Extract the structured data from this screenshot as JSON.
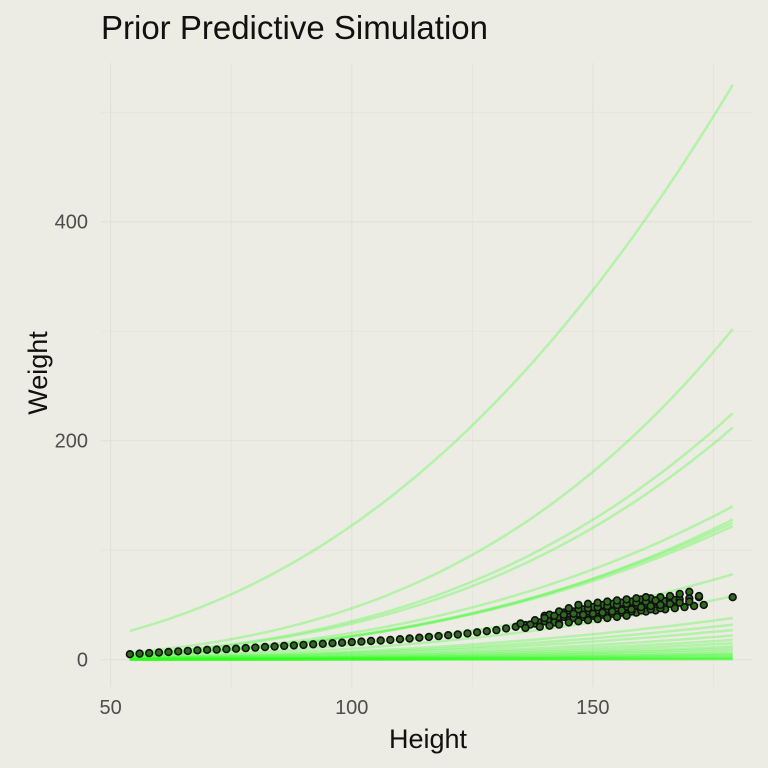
{
  "chart_data": {
    "type": "line",
    "title": "Prior Predictive Simulation",
    "xlabel": "Height",
    "ylabel": "Weight",
    "xlim": [
      48,
      183
    ],
    "ylim": [
      -25,
      545
    ],
    "x_ticks": [
      50,
      100,
      150
    ],
    "y_ticks": [
      0,
      200,
      400
    ],
    "grid": true,
    "legend": "none",
    "colors": {
      "background": "#ececE4",
      "grid": "#e2e2da",
      "prior_line": "#33ff22",
      "data_point": "#111111",
      "data_fill": "#2e6b1f"
    },
    "series": [
      {
        "kind": "prior_curves",
        "x_range": [
          54,
          179
        ],
        "curve_model": "weight = w_end * (height / 179)^exponent",
        "curves": [
          {
            "w_end": 525,
            "exponent": 2.5
          },
          {
            "w_end": 302,
            "exponent": 3.2
          },
          {
            "w_end": 225,
            "exponent": 3.2
          },
          {
            "w_end": 212,
            "exponent": 3.2
          },
          {
            "w_end": 140,
            "exponent": 3.0
          },
          {
            "w_end": 128,
            "exponent": 3.1
          },
          {
            "w_end": 125,
            "exponent": 3.0
          },
          {
            "w_end": 122,
            "exponent": 3.0
          },
          {
            "w_end": 78,
            "exponent": 3.0
          },
          {
            "w_end": 58,
            "exponent": 3.0
          },
          {
            "w_end": 38,
            "exponent": 2.8
          },
          {
            "w_end": 32,
            "exponent": 2.8
          },
          {
            "w_end": 27,
            "exponent": 2.8
          },
          {
            "w_end": 22,
            "exponent": 2.9
          },
          {
            "w_end": 18,
            "exponent": 2.9
          },
          {
            "w_end": 15,
            "exponent": 3.0
          },
          {
            "w_end": 12,
            "exponent": 3.0
          },
          {
            "w_end": 10,
            "exponent": 3.0
          },
          {
            "w_end": 8,
            "exponent": 3.0
          },
          {
            "w_end": 6,
            "exponent": 3.0
          },
          {
            "w_end": 5,
            "exponent": 3.0
          },
          {
            "w_end": 4,
            "exponent": 3.0
          },
          {
            "w_end": 3,
            "exponent": 3.0
          },
          {
            "w_end": 2,
            "exponent": 3.0
          },
          {
            "w_end": 1.5,
            "exponent": 3.0
          },
          {
            "w_end": 1,
            "exponent": 3.0
          },
          {
            "w_end": 0.6,
            "exponent": 3.0
          },
          {
            "w_end": 0.3,
            "exponent": 3.0
          }
        ]
      },
      {
        "kind": "observed_points",
        "points": [
          [
            54,
            5
          ],
          [
            56,
            5.5
          ],
          [
            58,
            6
          ],
          [
            60,
            6.5
          ],
          [
            62,
            7
          ],
          [
            64,
            7.5
          ],
          [
            66,
            8
          ],
          [
            68,
            8.5
          ],
          [
            70,
            9
          ],
          [
            72,
            9.2
          ],
          [
            74,
            9.6
          ],
          [
            76,
            10
          ],
          [
            78,
            10.5
          ],
          [
            80,
            11
          ],
          [
            82,
            11.5
          ],
          [
            84,
            12
          ],
          [
            86,
            12.5
          ],
          [
            88,
            13
          ],
          [
            90,
            13.5
          ],
          [
            92,
            14
          ],
          [
            94,
            14.5
          ],
          [
            96,
            15
          ],
          [
            98,
            15.5
          ],
          [
            100,
            16
          ],
          [
            102,
            16.5
          ],
          [
            104,
            17
          ],
          [
            106,
            17.5
          ],
          [
            108,
            18
          ],
          [
            110,
            18.7
          ],
          [
            112,
            19.3
          ],
          [
            114,
            20
          ],
          [
            116,
            20.8
          ],
          [
            118,
            21.5
          ],
          [
            120,
            22.3
          ],
          [
            122,
            23
          ],
          [
            124,
            24
          ],
          [
            126,
            25
          ],
          [
            128,
            26
          ],
          [
            130,
            27
          ],
          [
            132,
            28.5
          ],
          [
            134,
            30
          ],
          [
            136,
            31.5
          ],
          [
            138,
            33
          ],
          [
            139,
            34
          ],
          [
            140,
            35
          ],
          [
            141,
            36
          ],
          [
            142,
            37
          ],
          [
            143,
            38
          ],
          [
            144,
            39
          ],
          [
            145,
            40
          ],
          [
            146,
            40.5
          ],
          [
            147,
            41
          ],
          [
            148,
            42
          ],
          [
            149,
            43
          ],
          [
            150,
            43.5
          ],
          [
            151,
            44
          ],
          [
            152,
            45
          ],
          [
            153,
            46
          ],
          [
            154,
            46.5
          ],
          [
            155,
            47
          ],
          [
            156,
            48
          ],
          [
            157,
            48.5
          ],
          [
            158,
            49
          ],
          [
            159,
            50
          ],
          [
            160,
            50.5
          ],
          [
            161,
            51
          ],
          [
            162,
            52
          ],
          [
            163,
            52.5
          ],
          [
            164,
            53
          ],
          [
            165,
            53.5
          ],
          [
            166,
            54
          ],
          [
            167,
            54.5
          ],
          [
            168,
            55
          ],
          [
            170,
            56
          ],
          [
            172,
            57
          ],
          [
            179,
            57
          ],
          [
            140,
            40
          ],
          [
            141,
            41
          ],
          [
            142,
            34
          ],
          [
            143,
            33
          ],
          [
            144,
            43
          ],
          [
            145,
            36
          ],
          [
            146,
            44
          ],
          [
            147,
            36
          ],
          [
            148,
            46
          ],
          [
            149,
            38
          ],
          [
            150,
            48
          ],
          [
            151,
            39
          ],
          [
            152,
            50
          ],
          [
            153,
            40
          ],
          [
            154,
            51
          ],
          [
            155,
            41
          ],
          [
            156,
            52
          ],
          [
            157,
            42
          ],
          [
            158,
            53
          ],
          [
            159,
            43
          ],
          [
            160,
            55
          ],
          [
            161,
            44
          ],
          [
            162,
            56
          ],
          [
            163,
            45
          ],
          [
            164,
            57
          ],
          [
            165,
            46
          ],
          [
            166,
            58
          ],
          [
            167,
            47
          ],
          [
            168,
            60
          ],
          [
            169,
            48
          ],
          [
            170,
            62
          ],
          [
            171,
            49
          ],
          [
            172,
            58
          ],
          [
            173,
            50
          ],
          [
            145,
            45
          ],
          [
            147,
            46
          ],
          [
            149,
            47
          ],
          [
            151,
            48
          ],
          [
            153,
            49
          ],
          [
            155,
            50
          ],
          [
            157,
            51
          ],
          [
            159,
            52
          ],
          [
            161,
            53
          ],
          [
            163,
            54
          ],
          [
            146,
            38
          ],
          [
            148,
            39
          ],
          [
            150,
            40
          ],
          [
            152,
            41
          ],
          [
            154,
            42
          ],
          [
            156,
            43
          ],
          [
            158,
            44
          ],
          [
            160,
            45
          ],
          [
            162,
            46
          ],
          [
            164,
            47
          ],
          [
            143,
            44
          ],
          [
            145,
            47
          ],
          [
            147,
            50
          ],
          [
            149,
            51
          ],
          [
            151,
            52
          ],
          [
            153,
            53
          ],
          [
            155,
            54
          ],
          [
            157,
            55
          ],
          [
            159,
            56
          ],
          [
            161,
            57
          ],
          [
            139,
            30
          ],
          [
            141,
            31
          ],
          [
            143,
            32
          ],
          [
            145,
            34
          ],
          [
            147,
            35
          ],
          [
            149,
            36
          ],
          [
            151,
            37
          ],
          [
            153,
            38
          ],
          [
            155,
            39
          ],
          [
            157,
            40
          ],
          [
            160,
            48
          ],
          [
            162,
            49
          ],
          [
            164,
            50
          ],
          [
            166,
            51
          ],
          [
            168,
            52
          ],
          [
            170,
            53
          ],
          [
            158,
            46
          ],
          [
            156,
            45
          ],
          [
            154,
            44
          ],
          [
            152,
            43
          ],
          [
            150,
            42
          ],
          [
            148,
            41
          ],
          [
            146,
            42
          ],
          [
            144,
            41
          ],
          [
            142,
            40
          ],
          [
            140,
            38
          ],
          [
            138,
            36
          ],
          [
            137,
            32
          ],
          [
            136,
            29
          ],
          [
            135,
            33
          ]
        ]
      }
    ]
  }
}
